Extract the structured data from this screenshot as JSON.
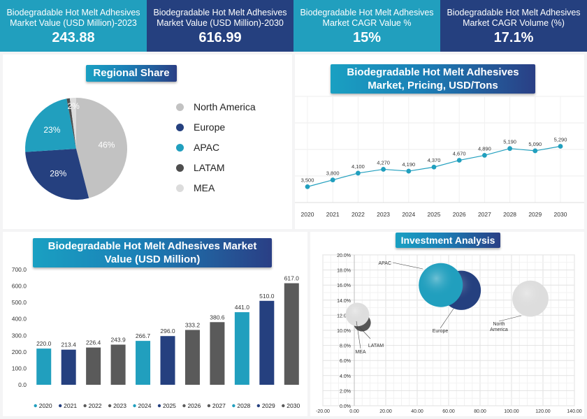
{
  "kpis": [
    {
      "label": "Biodegradable Hot Melt Adhesives Market Value (USD Million)-2023",
      "value": "243.88"
    },
    {
      "label": "Biodegradable Hot Melt Adhesives Market Value (USD Million)-2030",
      "value": "616.99"
    },
    {
      "label": "Biodegradable Hot Melt Adhesives Market CAGR Value %",
      "value": "15%"
    },
    {
      "label": "Biodegradable Hot Melt Adhesives Market CAGR Volume (%)",
      "value": "17.1%"
    }
  ],
  "colors": {
    "teal": "#219fbe",
    "navy": "#25407f",
    "gray": "#5a5a5a",
    "light": "#c4c4c4",
    "pale": "#e1e1e1"
  },
  "chart_data": [
    {
      "type": "pie",
      "title": "Regional Share",
      "categories": [
        "North America",
        "Europe",
        "APAC",
        "LATAM",
        "MEA"
      ],
      "values": [
        46,
        28,
        23,
        1,
        2
      ],
      "labels": [
        "46%",
        "28%",
        "23%",
        "",
        "2%"
      ],
      "colors": [
        "#c2c2c2",
        "#25407f",
        "#219fbe",
        "#4e4e4e",
        "#dcdcdc"
      ],
      "legend": "right"
    },
    {
      "type": "line",
      "title": "Biodegradable Hot Melt Adhesives Market, Pricing, USD/Tons",
      "x": [
        "2020",
        "2021",
        "2022",
        "2023",
        "2024",
        "2025",
        "2026",
        "2027",
        "2028",
        "2029",
        "2030"
      ],
      "series": [
        {
          "values": [
            3500,
            3800,
            4100,
            4270,
            4190,
            4370,
            4670,
            4890,
            5190,
            5090,
            5290
          ],
          "labels": [
            "3,500",
            "3,800",
            "4,100",
            "4,270",
            "4,190",
            "4,370",
            "4,670",
            "4,890",
            "5,190",
            "5,090",
            "5,290"
          ]
        }
      ],
      "ylim": [
        2800,
        7500
      ],
      "grid": true
    },
    {
      "type": "bar",
      "title": "Biodegradable Hot Melt Adhesives Market Value (USD Million)",
      "categories": [
        "2020",
        "2021",
        "2022",
        "2023",
        "2024",
        "2025",
        "2026",
        "2027",
        "2028",
        "2029",
        "2030"
      ],
      "values": [
        220.0,
        213.4,
        226.4,
        243.9,
        266.7,
        296.0,
        333.2,
        380.6,
        441.0,
        510.0,
        617.0
      ],
      "value_labels": [
        "220.0",
        "213.4",
        "226.4",
        "243.9",
        "266.7",
        "296.0",
        "333.2",
        "380.6",
        "441.0",
        "510.0",
        "617.0"
      ],
      "colors": [
        "#219fbe",
        "#25407f",
        "#5a5a5a",
        "#5a5a5a",
        "#219fbe",
        "#25407f",
        "#5a5a5a",
        "#5a5a5a",
        "#219fbe",
        "#25407f",
        "#5a5a5a"
      ],
      "ylim": [
        0,
        700
      ],
      "yticks": [
        "0.0",
        "100.0",
        "200.0",
        "300.0",
        "400.0",
        "500.0",
        "600.0",
        "700.0"
      ],
      "legend": "bottom"
    },
    {
      "type": "scatter",
      "title": "Investment Analysis",
      "xlim": [
        -20,
        140
      ],
      "ylim": [
        0,
        20
      ],
      "xticks": [
        "-20.00",
        "0.00",
        "20.00",
        "40.00",
        "60.00",
        "80.00",
        "100.00",
        "120.00",
        "140.00"
      ],
      "yticks": [
        "0.0%",
        "2.0%",
        "4.0%",
        "6.0%",
        "8.0%",
        "10.0%",
        "12.0%",
        "14.0%",
        "16.0%",
        "18.0%",
        "20.0%"
      ],
      "grid": true,
      "points": [
        {
          "name": "Europe",
          "x": 68,
          "y": 15.3,
          "size": 12.5,
          "color": "#25407f"
        },
        {
          "name": "APAC",
          "x": 55,
          "y": 16.0,
          "size": 14,
          "color": "#219fbe"
        },
        {
          "name": "North America",
          "x": 112,
          "y": 14.2,
          "size": 11.5,
          "color": "#dddddd"
        },
        {
          "name": "LATAM",
          "x": 5,
          "y": 11.0,
          "size": 5.5,
          "color": "#555555"
        },
        {
          "name": "MEA",
          "x": 2,
          "y": 12.1,
          "size": 7.5,
          "color": "#dedede"
        }
      ]
    }
  ]
}
